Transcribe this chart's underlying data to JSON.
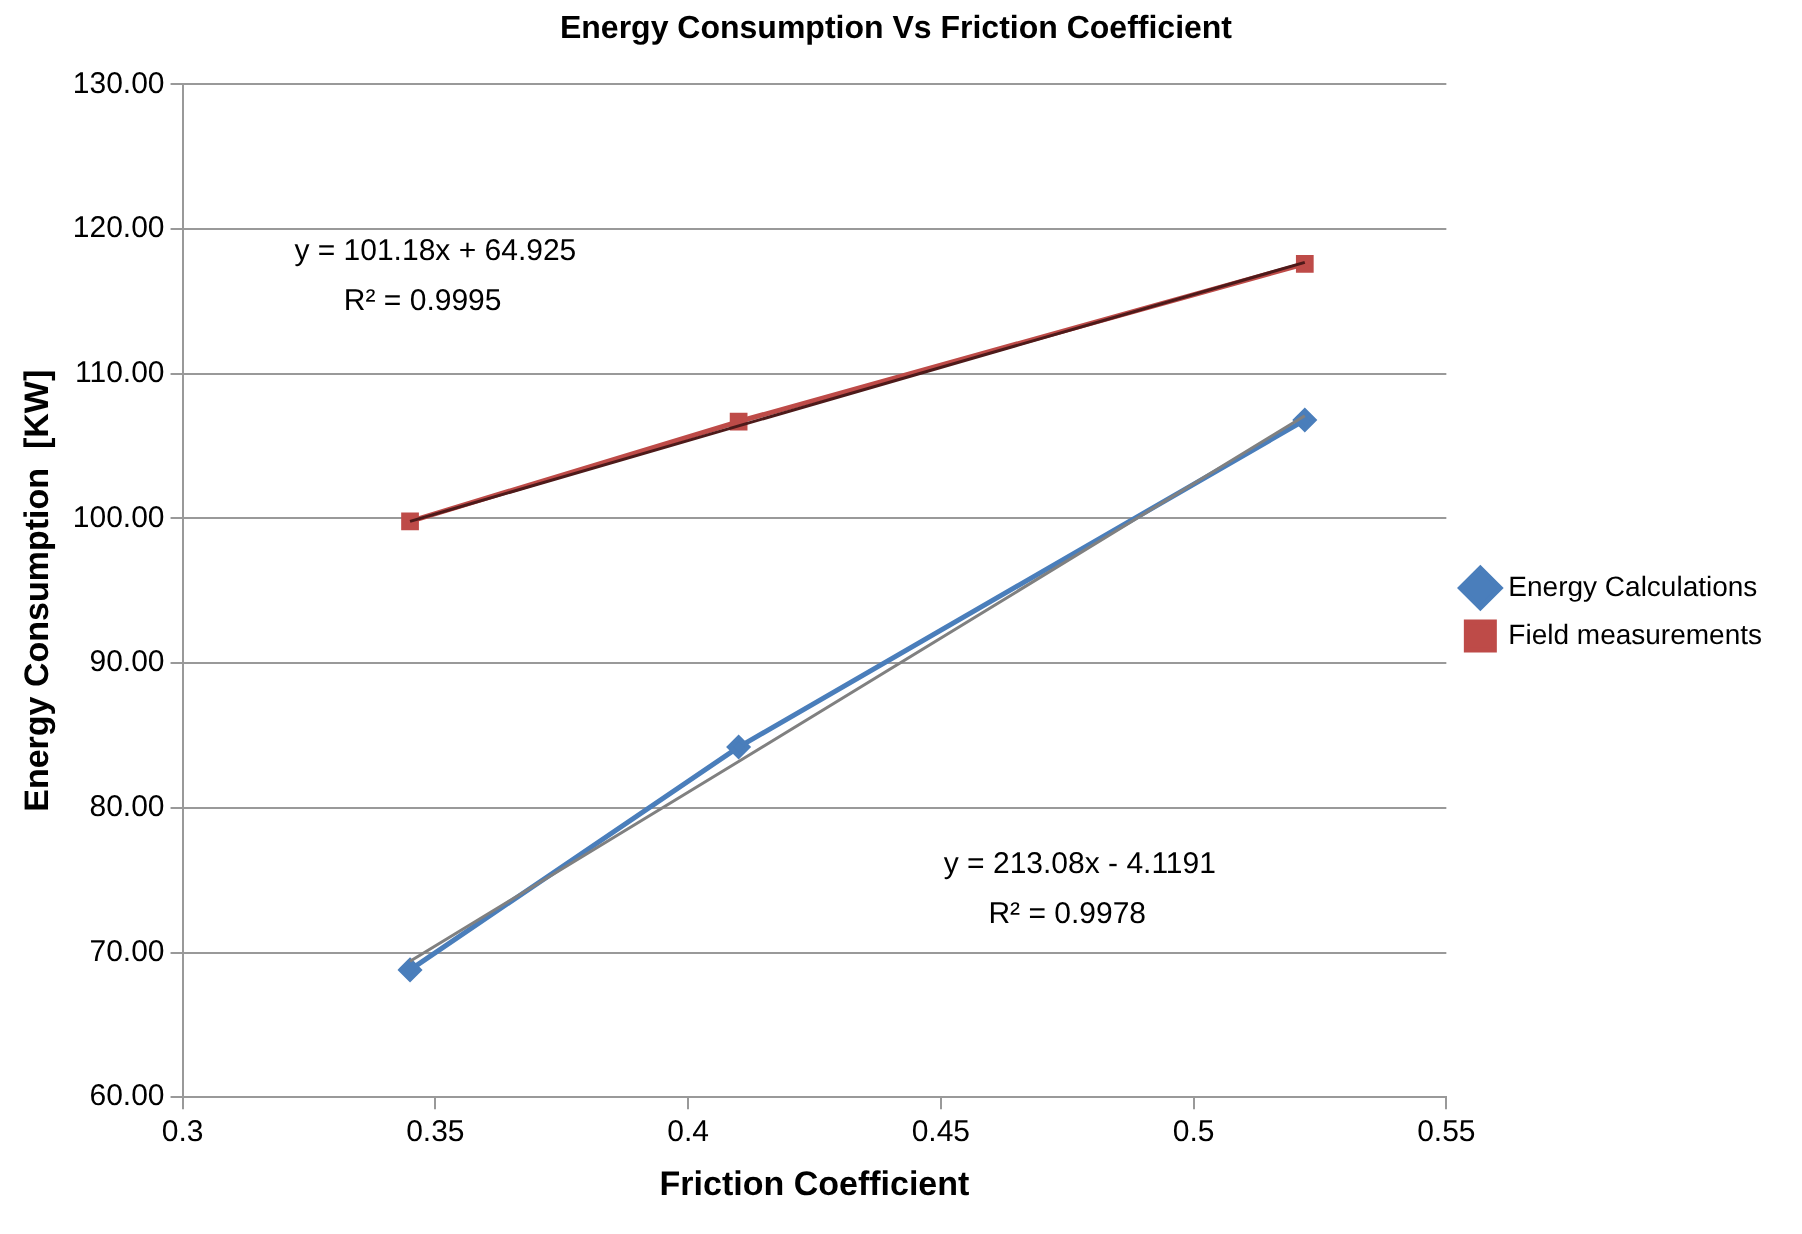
{
  "chart_data": {
    "type": "line",
    "title": "Energy Consumption Vs Friction Coefficient",
    "xlabel": "Friction Coefficient",
    "ylabel": "Energy Consumption  [KW]",
    "x": [
      0.345,
      0.41,
      0.522
    ],
    "series": [
      {
        "name": "Energy Calculations",
        "color": "#4a7ebb",
        "marker": "diamond",
        "values": [
          68.8,
          84.2,
          106.8
        ]
      },
      {
        "name": "Field measurements",
        "color": "#be4b48",
        "marker": "square",
        "values": [
          99.8,
          106.7,
          117.6
        ]
      },
      {
        "type": "line",
        "color": "#808080",
        "marker": "none",
        "values": [
          69.4,
          83.2,
          107.1
        ]
      },
      {
        "type": "line",
        "color": "#4d1a1a",
        "marker": "none",
        "values": [
          99.8,
          106.4,
          117.7
        ]
      }
    ],
    "xlim": [
      0.3,
      0.55
    ],
    "xticks": [
      0.3,
      0.35,
      0.4,
      0.45,
      0.5,
      0.55
    ],
    "ylim": [
      60,
      130
    ],
    "yticks": [
      {
        "value": 60,
        "label": "60.00"
      },
      {
        "value": 70,
        "label": "70.00"
      },
      {
        "value": 80,
        "label": "80.00"
      },
      {
        "value": 90,
        "label": "90.00"
      },
      {
        "value": 100,
        "label": "100.00"
      },
      {
        "value": 110,
        "label": "110.00"
      },
      {
        "value": 120,
        "label": "120.00"
      },
      {
        "value": 130,
        "label": "130.00"
      }
    ],
    "grid": "y",
    "legend": "right",
    "line_style": "solid",
    "annotations": [
      "y = 101.18x + 64.925",
      "R² = 0.9995",
      "y = 213.08x - 4.1191",
      "R² = 0.9978"
    ]
  }
}
